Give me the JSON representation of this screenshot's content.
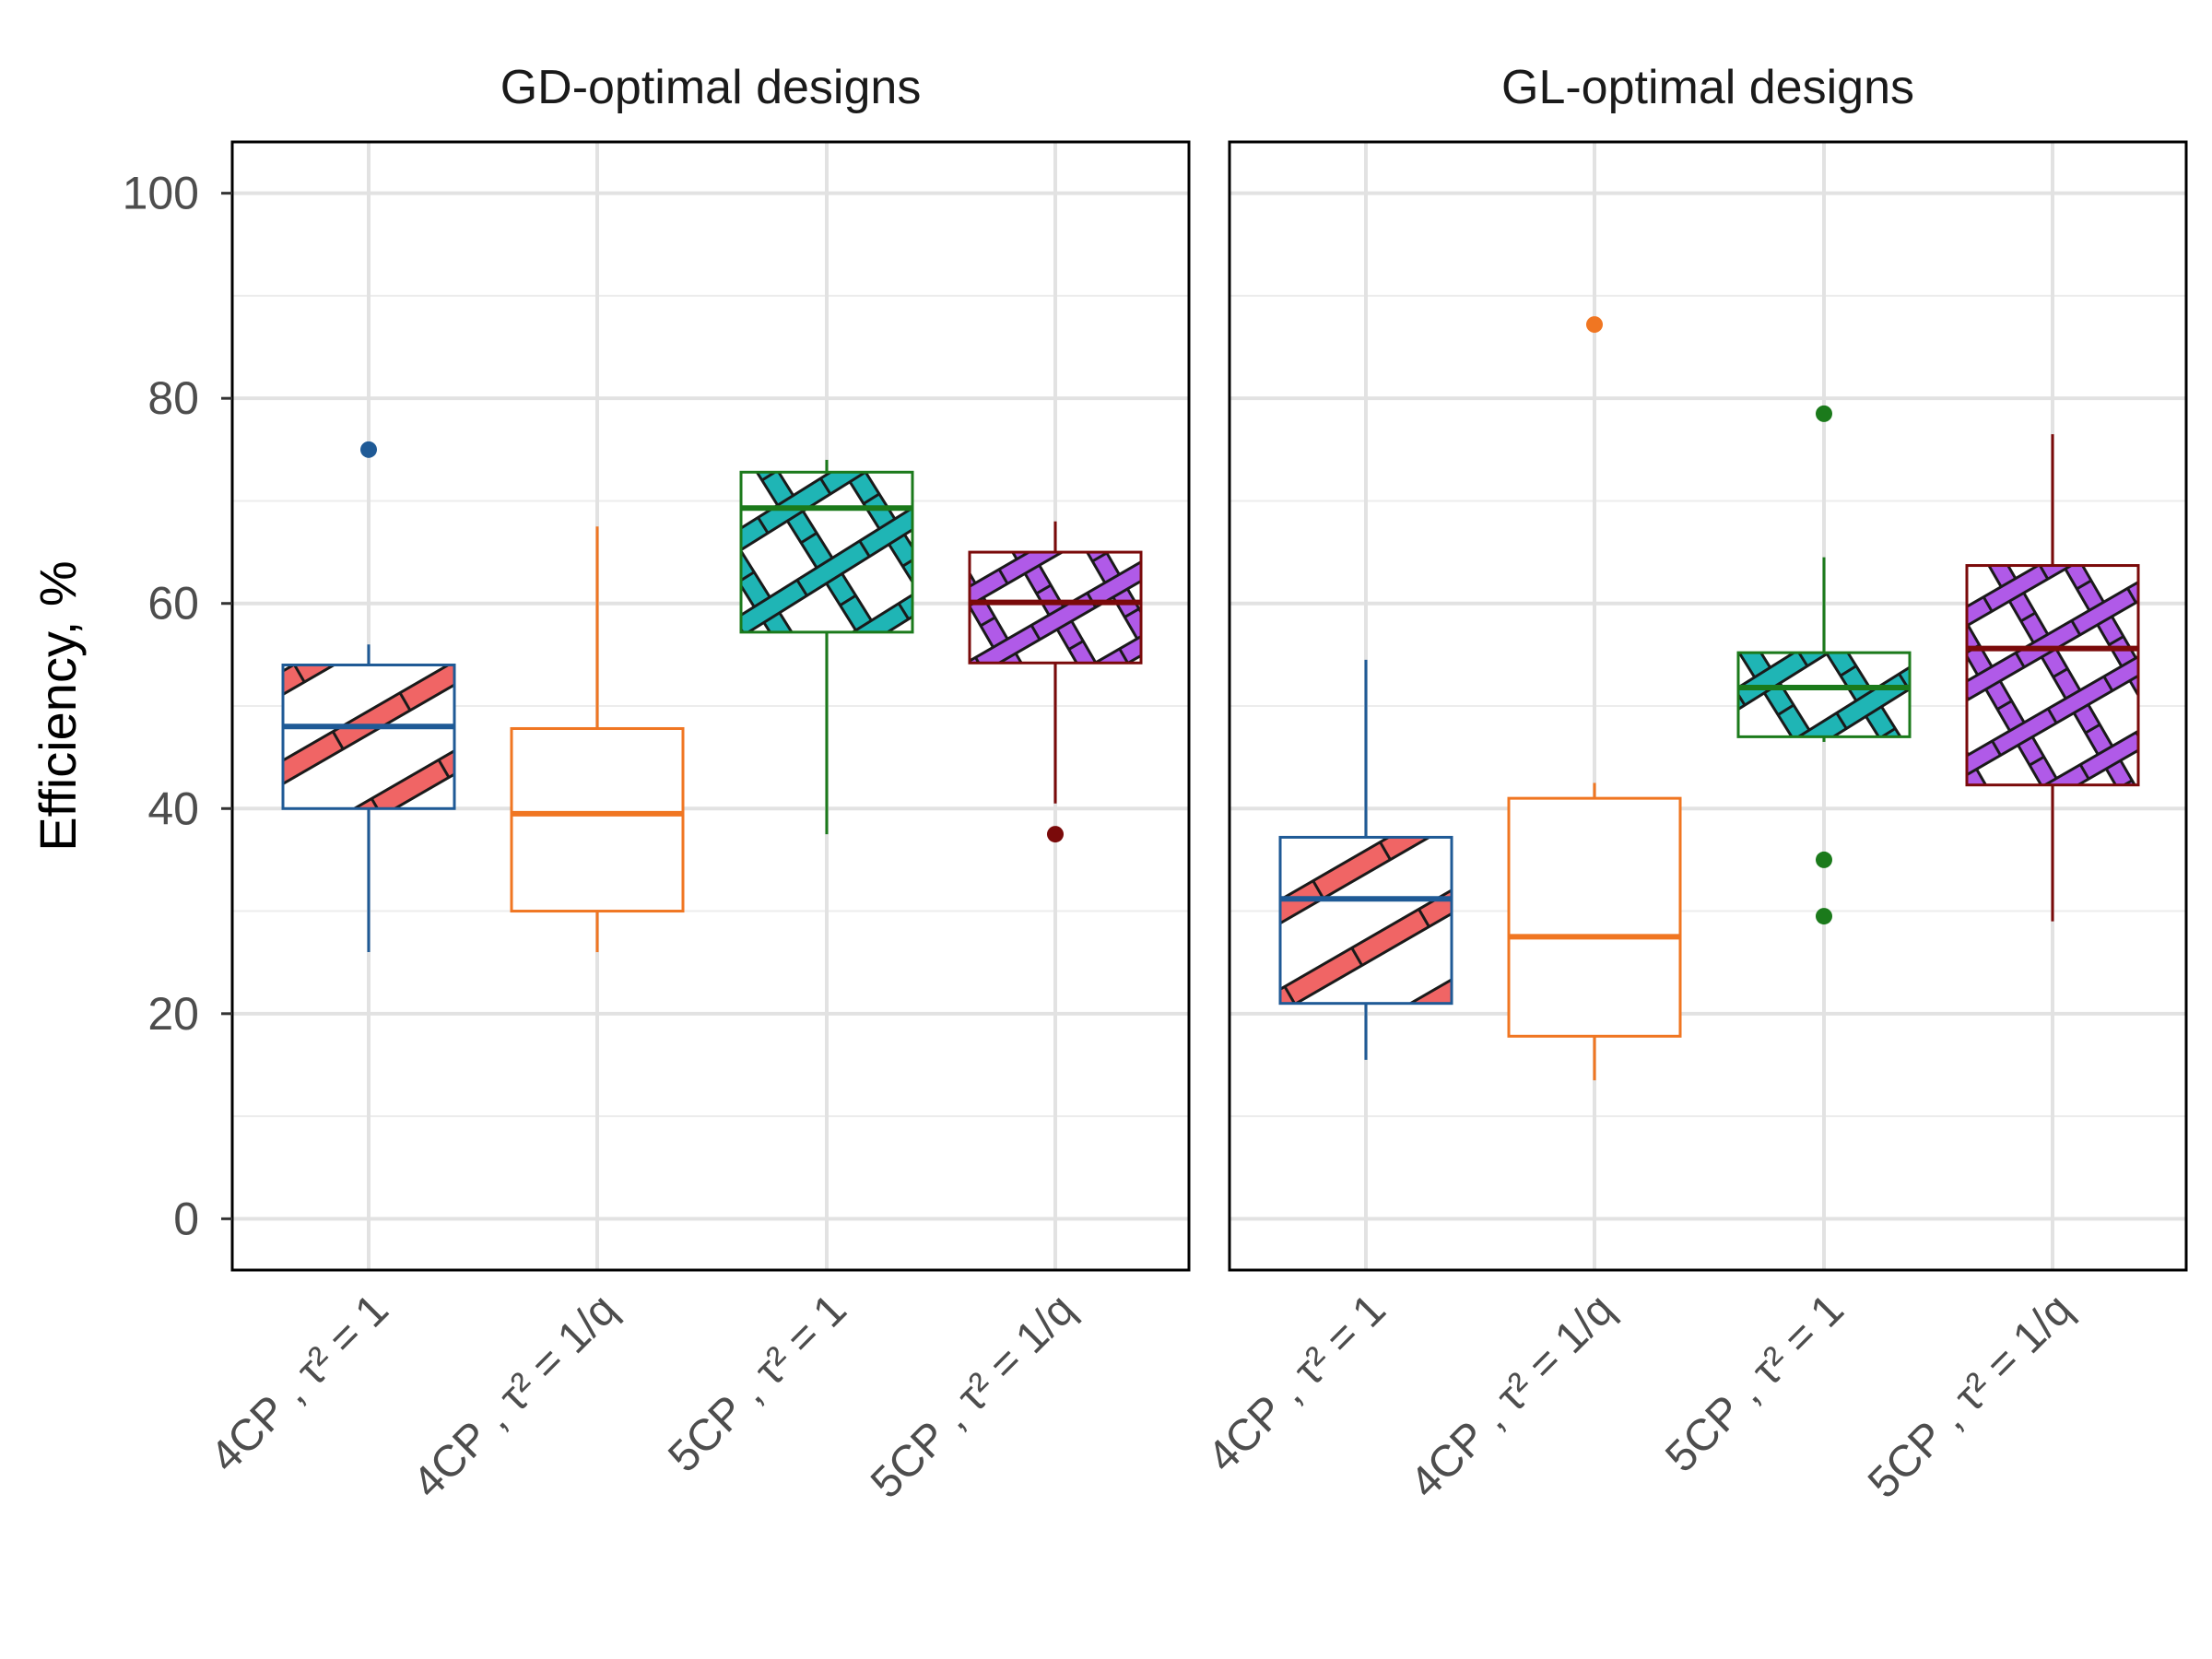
{
  "chart_data": {
    "type": "boxplot",
    "ylabel": "Efficiency, %",
    "ylim": [
      -5,
      105
    ],
    "yticks": [
      0,
      20,
      40,
      60,
      80,
      100
    ],
    "grid": true,
    "categories": [
      "4CP , τ² = 1",
      "4CP , τ² = 1/q",
      "5CP , τ² = 1",
      "5CP , τ² = 1/q"
    ],
    "colors": {
      "4CP_tau1": "#1f5a96",
      "4CP_tau1q": "#f07622",
      "5CP_tau1": "#1b7a1b",
      "5CP_tau1q": "#7a0a0a"
    },
    "fills": {
      "4CP_tau1": "#f06565",
      "4CP_tau1q": "#ffffff",
      "5CP_tau1": "#1fb5b5",
      "5CP_tau1q": "#b05ae8"
    },
    "patterns": {
      "4CP_tau1": "stripe",
      "4CP_tau1q": "none",
      "5CP_tau1": "crosshatch",
      "5CP_tau1q": "crosshatch"
    },
    "panels": [
      {
        "title": "GD-optimal designs",
        "boxes": [
          {
            "key": "4CP_tau1",
            "whisker_low": 26,
            "q1": 40,
            "median": 48,
            "q3": 54,
            "whisker_high": 56,
            "outliers": [
              75
            ]
          },
          {
            "key": "4CP_tau1q",
            "whisker_low": 26,
            "q1": 30,
            "median": 39.5,
            "q3": 47.8,
            "whisker_high": 67.5,
            "outliers": []
          },
          {
            "key": "5CP_tau1",
            "whisker_low": 37.5,
            "q1": 57.2,
            "median": 69.3,
            "q3": 72.8,
            "whisker_high": 74,
            "outliers": []
          },
          {
            "key": "5CP_tau1q",
            "whisker_low": 40.5,
            "q1": 54.2,
            "median": 60.1,
            "q3": 65,
            "whisker_high": 68,
            "outliers": [
              37.5
            ]
          }
        ]
      },
      {
        "title": "GL-optimal designs",
        "boxes": [
          {
            "key": "4CP_tau1",
            "whisker_low": 15.5,
            "q1": 21,
            "median": 31.2,
            "q3": 37.2,
            "whisker_high": 54.5,
            "outliers": []
          },
          {
            "key": "4CP_tau1q",
            "whisker_low": 13.5,
            "q1": 17.8,
            "median": 27.5,
            "q3": 41,
            "whisker_high": 42.5,
            "outliers": [
              87.2
            ]
          },
          {
            "key": "5CP_tau1",
            "whisker_low": 46.5,
            "q1": 47,
            "median": 51.8,
            "q3": 55.2,
            "whisker_high": 64.5,
            "outliers": [
              78.5,
              35,
              29.5
            ]
          },
          {
            "key": "5CP_tau1q",
            "whisker_low": 29,
            "q1": 42.3,
            "median": 55.6,
            "q3": 63.7,
            "whisker_high": 76.5,
            "outliers": []
          }
        ]
      }
    ]
  }
}
